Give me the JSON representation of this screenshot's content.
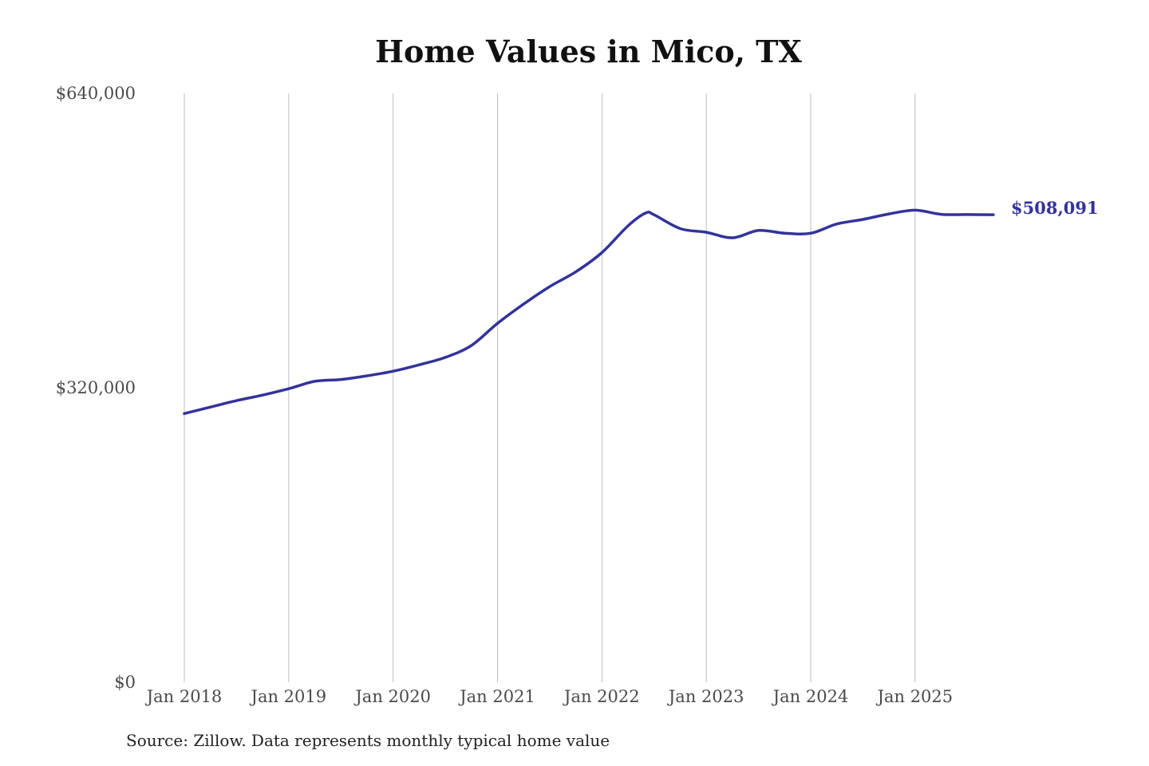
{
  "chart_data": {
    "type": "line",
    "title": "Home Values in Mico, TX",
    "source_note": "Source: Zillow. Data represents monthly typical home value",
    "end_label": "$508,091",
    "y_ticks": [
      {
        "value": 0,
        "label": "$0"
      },
      {
        "value": 320000,
        "label": "$320,000"
      },
      {
        "value": 640000,
        "label": "$640,000"
      }
    ],
    "x_ticks": [
      {
        "value": 2018.0,
        "label": "Jan 2018"
      },
      {
        "value": 2019.0,
        "label": "Jan 2019"
      },
      {
        "value": 2020.0,
        "label": "Jan 2020"
      },
      {
        "value": 2021.0,
        "label": "Jan 2021"
      },
      {
        "value": 2022.0,
        "label": "Jan 2022"
      },
      {
        "value": 2023.0,
        "label": "Jan 2023"
      },
      {
        "value": 2024.0,
        "label": "Jan 2024"
      },
      {
        "value": 2025.0,
        "label": "Jan 2025"
      }
    ],
    "ylim": [
      0,
      640000
    ],
    "xlim": [
      2018.0,
      2025.75
    ],
    "grid": "vertical",
    "line_color": "#33339a",
    "series": [
      {
        "points": [
          [
            2018.0,
            292000
          ],
          [
            2018.25,
            299000
          ],
          [
            2018.5,
            306000
          ],
          [
            2018.75,
            312000
          ],
          [
            2019.0,
            319000
          ],
          [
            2019.25,
            327000
          ],
          [
            2019.5,
            329000
          ],
          [
            2019.75,
            333000
          ],
          [
            2020.0,
            338000
          ],
          [
            2020.25,
            345000
          ],
          [
            2020.5,
            353000
          ],
          [
            2020.75,
            366000
          ],
          [
            2021.0,
            390000
          ],
          [
            2021.25,
            411000
          ],
          [
            2021.5,
            430000
          ],
          [
            2021.75,
            446000
          ],
          [
            2022.0,
            467000
          ],
          [
            2022.25,
            496000
          ],
          [
            2022.42,
            510000
          ],
          [
            2022.5,
            508000
          ],
          [
            2022.75,
            493000
          ],
          [
            2023.0,
            489000
          ],
          [
            2023.25,
            483000
          ],
          [
            2023.5,
            491000
          ],
          [
            2023.75,
            488000
          ],
          [
            2024.0,
            488000
          ],
          [
            2024.25,
            498000
          ],
          [
            2024.5,
            503000
          ],
          [
            2024.75,
            509000
          ],
          [
            2025.0,
            513000
          ],
          [
            2025.25,
            508500
          ],
          [
            2025.5,
            508300
          ],
          [
            2025.75,
            508091
          ]
        ]
      }
    ]
  }
}
